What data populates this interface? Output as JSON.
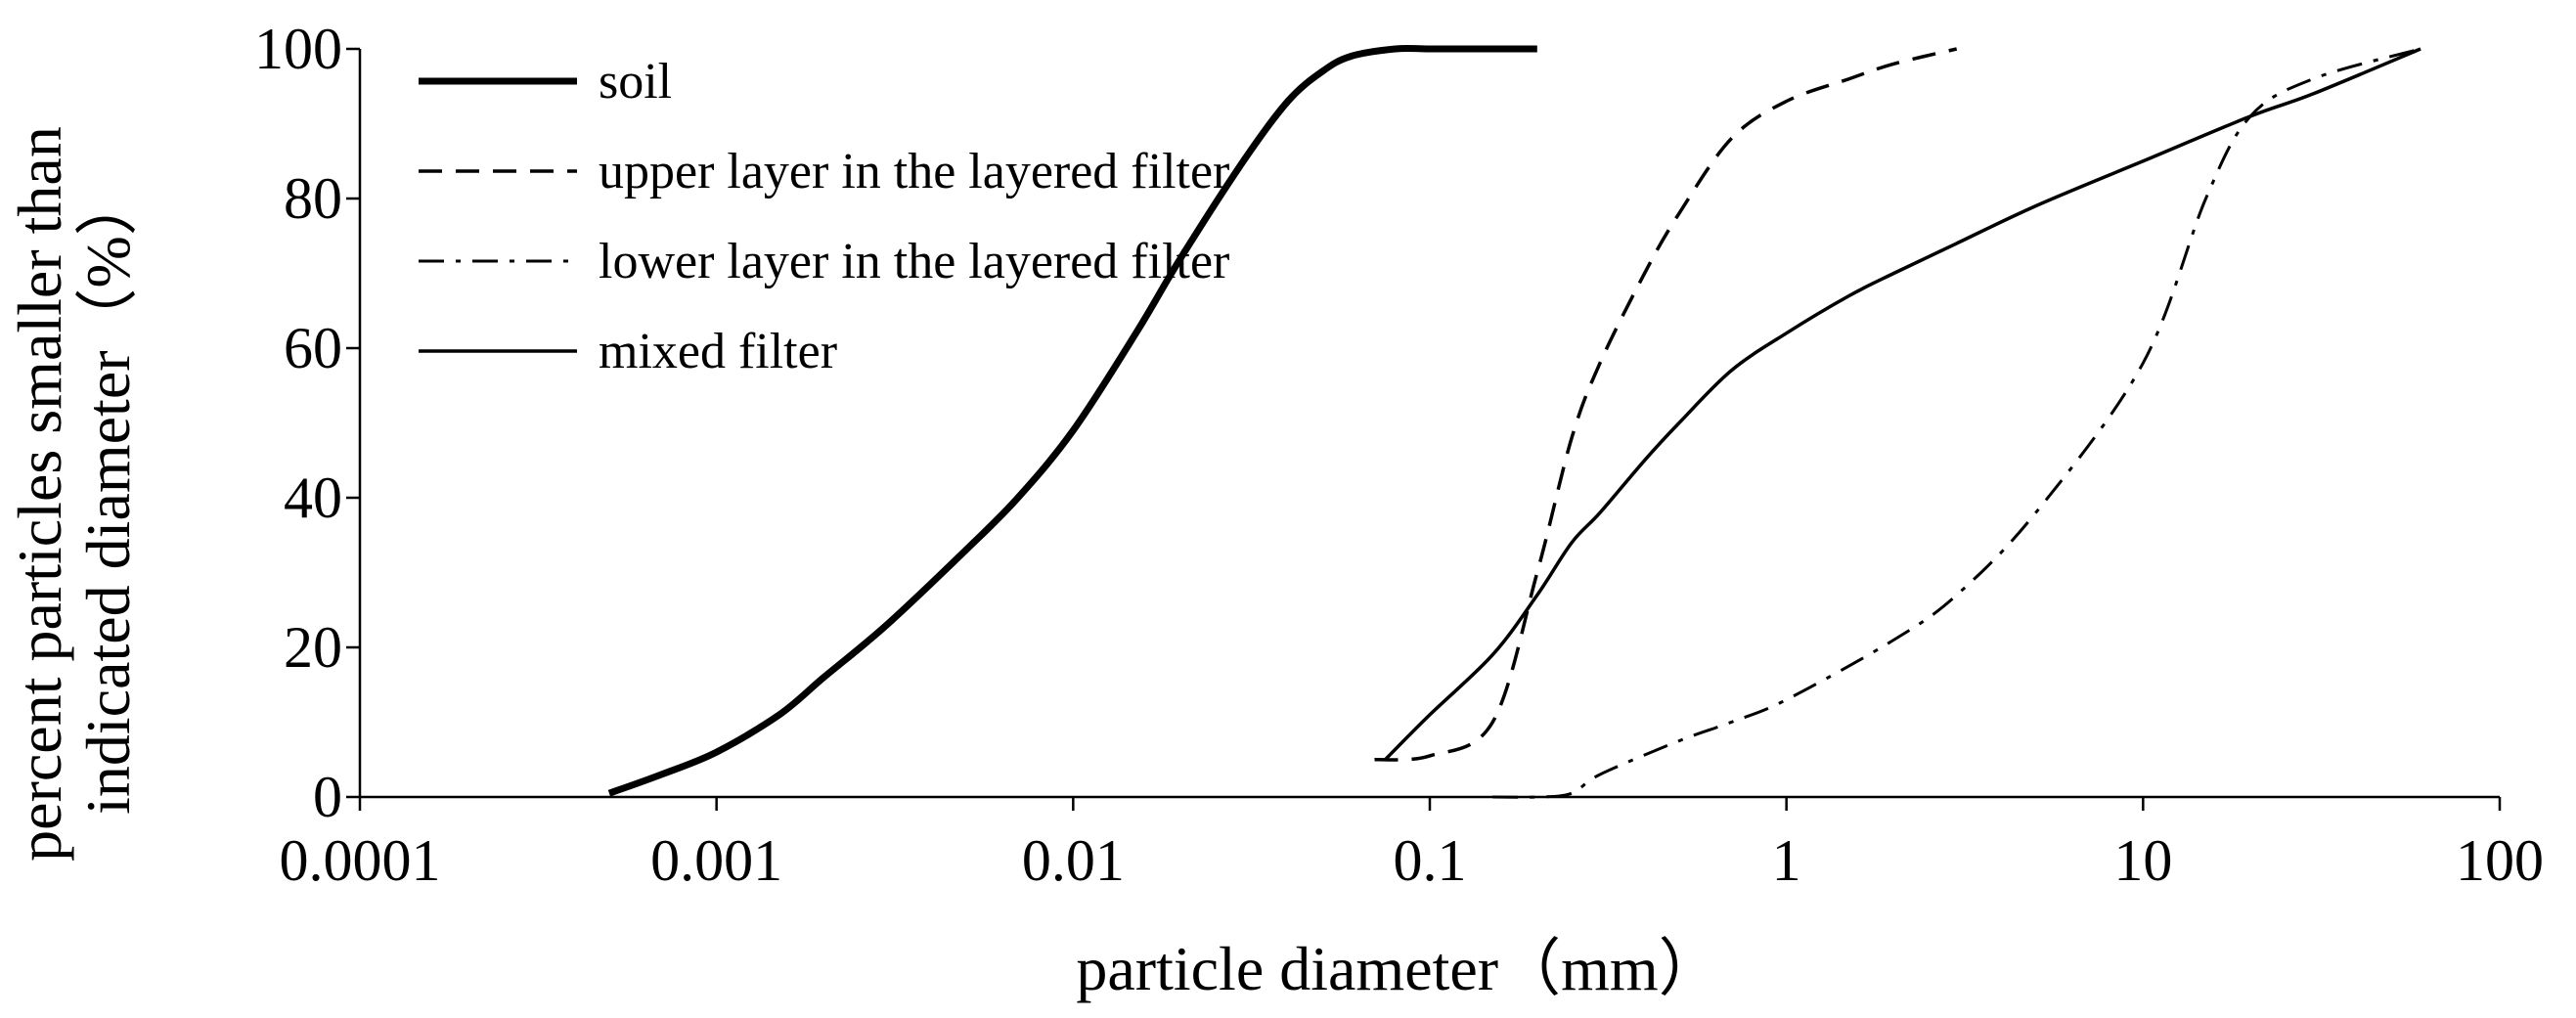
{
  "chart_data": {
    "type": "line",
    "xlabel": "particle diameter（mm）",
    "ylabel_lines": [
      "percent particles smaller than",
      "indicated diameter（%）"
    ],
    "x_scale": "log",
    "xlim": [
      0.0001,
      100
    ],
    "ylim": [
      0,
      100
    ],
    "x_ticks": [
      0.0001,
      0.001,
      0.01,
      0.1,
      1,
      10,
      100
    ],
    "x_tick_labels": [
      "0.0001",
      "0.001",
      "0.01",
      "0.1",
      "1",
      "10",
      "100"
    ],
    "y_ticks": [
      0,
      20,
      40,
      60,
      80,
      100
    ],
    "y_tick_labels": [
      "0",
      "20",
      "40",
      "60",
      "80",
      "100"
    ],
    "legend_position": "top-left",
    "series": [
      {
        "name": "soil",
        "style": "thick",
        "x": [
          0.0005,
          0.0007,
          0.001,
          0.0015,
          0.002,
          0.003,
          0.005,
          0.007,
          0.01,
          0.015,
          0.02,
          0.03,
          0.04,
          0.05,
          0.06,
          0.08,
          0.1,
          0.15,
          0.2
        ],
        "y": [
          0.5,
          3,
          6,
          11,
          16,
          23,
          33,
          40,
          49,
          62,
          72,
          85,
          93,
          97,
          99,
          100,
          100,
          100,
          100
        ]
      },
      {
        "name": "upper layer in the layered filter",
        "style": "dashed",
        "x": [
          0.07,
          0.1,
          0.15,
          0.2,
          0.25,
          0.3,
          0.4,
          0.5,
          0.7,
          1,
          1.5,
          2,
          3
        ],
        "y": [
          5,
          5.5,
          10,
          30,
          48,
          58,
          70,
          78,
          88,
          93,
          96,
          98,
          100
        ]
      },
      {
        "name": "lower layer in the layered filter",
        "style": "dashdot",
        "x": [
          0.15,
          0.2,
          0.25,
          0.3,
          0.5,
          0.7,
          1,
          2,
          3,
          5,
          10,
          15,
          20,
          30,
          60
        ],
        "y": [
          0,
          0,
          0.5,
          3,
          7.5,
          10,
          13,
          21,
          27,
          38,
          58,
          80,
          91,
          96,
          100
        ]
      },
      {
        "name": "mixed filter",
        "style": "solid",
        "x": [
          0.075,
          0.1,
          0.15,
          0.2,
          0.25,
          0.3,
          0.4,
          0.5,
          0.7,
          1,
          1.5,
          2,
          3,
          5,
          10,
          20,
          30,
          60
        ],
        "y": [
          5,
          11,
          19,
          27,
          34,
          38,
          45,
          50,
          57,
          62,
          67,
          70,
          74,
          79,
          85,
          91,
          94,
          100
        ]
      }
    ]
  }
}
